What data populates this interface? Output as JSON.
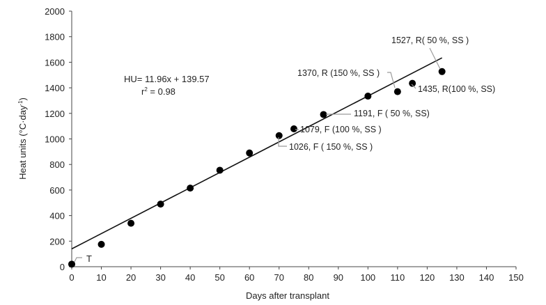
{
  "chart_data": {
    "type": "scatter",
    "title": "",
    "xlabel": "Days after transplant",
    "ylabel_main": "Heat units (°C·day",
    "ylabel_sup": "-1",
    "ylabel_close": ")",
    "xlim": [
      0,
      150
    ],
    "ylim": [
      0,
      2000
    ],
    "xticks": [
      0,
      10,
      20,
      30,
      40,
      50,
      60,
      70,
      80,
      90,
      100,
      110,
      120,
      130,
      140,
      150
    ],
    "yticks": [
      0,
      200,
      400,
      600,
      800,
      1000,
      1200,
      1400,
      1600,
      1800,
      2000
    ],
    "grid": false,
    "series": [
      {
        "name": "Heat units",
        "points": [
          {
            "x": 0,
            "y": 20
          },
          {
            "x": 10,
            "y": 175
          },
          {
            "x": 20,
            "y": 340
          },
          {
            "x": 30,
            "y": 490
          },
          {
            "x": 40,
            "y": 615
          },
          {
            "x": 50,
            "y": 755
          },
          {
            "x": 60,
            "y": 890
          },
          {
            "x": 70,
            "y": 1026
          },
          {
            "x": 75,
            "y": 1079
          },
          {
            "x": 85,
            "y": 1191
          },
          {
            "x": 100,
            "y": 1335
          },
          {
            "x": 110,
            "y": 1370
          },
          {
            "x": 115,
            "y": 1435
          },
          {
            "x": 125,
            "y": 1527
          }
        ]
      }
    ],
    "trendline": {
      "slope": 11.96,
      "intercept": 139.57,
      "x_range": [
        0,
        125
      ],
      "equation": "HU= 11.96x + 139.57",
      "r2_prefix": "r",
      "r2_sup": "2",
      "r2_suffix": " = 0.98"
    },
    "annotations": [
      {
        "text": "T",
        "point_index": 0
      },
      {
        "text": "1026, F ( 150 %, SS )",
        "point_index": 7
      },
      {
        "text": "1079, F (100 %, SS )",
        "point_index": 8
      },
      {
        "text": "1191, F ( 50 %, SS)",
        "point_index": 9
      },
      {
        "text": "1370, R (150 %, SS )",
        "point_index": 11
      },
      {
        "text": "1435, R(100 %, SS)",
        "point_index": 12
      },
      {
        "text": "1527, R( 50 %, SS )",
        "point_index": 13
      }
    ]
  }
}
